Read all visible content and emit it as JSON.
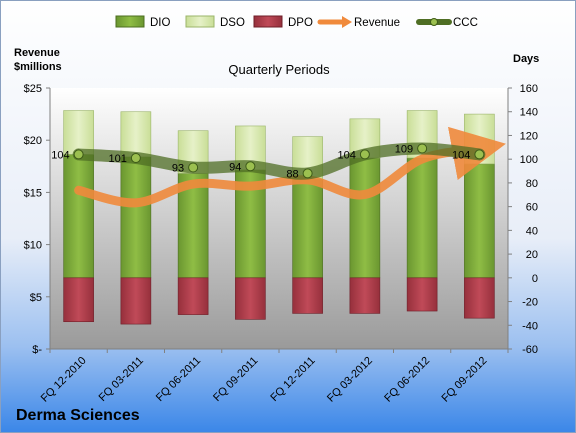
{
  "chart_data": {
    "type": "bar",
    "title": "Quarterly Periods",
    "company": "Derma Sciences",
    "left_axis_label": [
      "Revenue",
      "$millions"
    ],
    "right_axis_label": "Days",
    "categories": [
      "FQ 12-2010",
      "FQ 03-2011",
      "FQ 06-2011",
      "FQ 09-2011",
      "FQ 12-2011",
      "FQ 03-2012",
      "FQ 06-2012",
      "FQ 09-2012"
    ],
    "left_axis": {
      "min": 0,
      "max": 25,
      "step": 5,
      "tick_labels": [
        "$-",
        "$5",
        "$10",
        "$15",
        "$20",
        "$25"
      ]
    },
    "right_axis": {
      "min": -60,
      "max": 160,
      "step": 20,
      "tick_labels": [
        "-60",
        "-40",
        "-20",
        "0",
        "20",
        "40",
        "60",
        "80",
        "100",
        "120",
        "140",
        "160"
      ]
    },
    "legend": [
      "DIO",
      "DSO",
      "DPO",
      "Revenue",
      "CCC"
    ],
    "series": [
      {
        "name": "DIO",
        "axis": "right",
        "type": "stacked-bar",
        "color": "#7ea83a",
        "values": [
          104,
          102,
          88,
          91,
          83,
          101,
          101,
          96
        ]
      },
      {
        "name": "DSO",
        "axis": "right",
        "type": "stacked-bar",
        "color": "#d8e8b0",
        "values": [
          37,
          38,
          36,
          37,
          36,
          33,
          40,
          42
        ]
      },
      {
        "name": "DPO",
        "axis": "right",
        "type": "negative-bar",
        "color": "#b23a48",
        "values": [
          -37,
          -39,
          -31,
          -35,
          -30,
          -30,
          -28,
          -34
        ]
      },
      {
        "name": "Revenue",
        "axis": "left",
        "type": "line",
        "color": "#f08a3c",
        "values": [
          15.2,
          14.0,
          15.8,
          15.6,
          16.2,
          14.8,
          18.2,
          19.2
        ]
      },
      {
        "name": "CCC",
        "axis": "right",
        "type": "line",
        "color": "#5a7a2a",
        "values": [
          104,
          101,
          93,
          94,
          88,
          104,
          109,
          104
        ],
        "labels": [
          "104",
          "101",
          "93",
          "94",
          "88",
          "104",
          "109",
          "104"
        ]
      }
    ],
    "colors": {
      "background_top": "#ffffff",
      "background_bottom": "#3a86e8",
      "plot_top": "#ffffff",
      "plot_bottom": "#9a9a9a"
    }
  }
}
